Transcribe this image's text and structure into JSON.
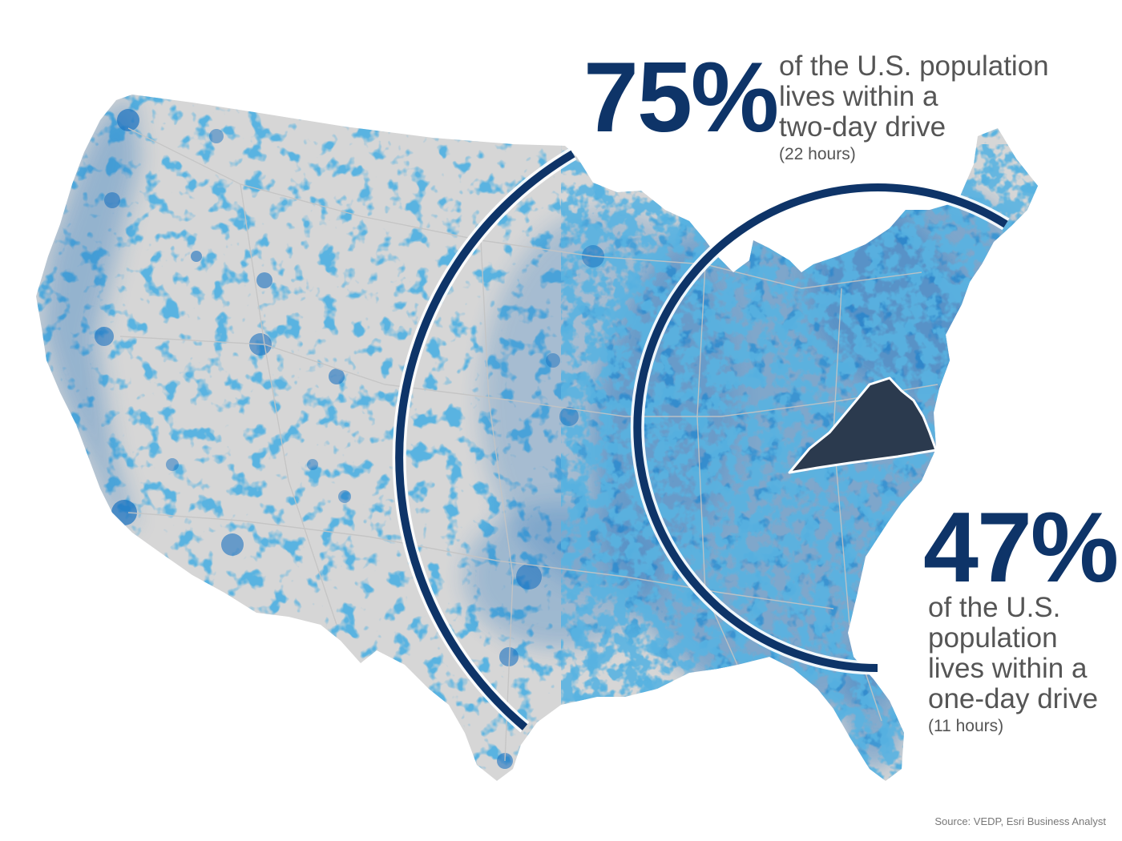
{
  "stats": {
    "two_day": {
      "value": "75%",
      "lines": [
        "of the U.S. population",
        "lives within a",
        "two-day drive"
      ],
      "note": "(22 hours)"
    },
    "one_day": {
      "value": "47%",
      "lines": [
        "of the U.S.",
        "population",
        "lives within a",
        "one-day drive"
      ],
      "note": "(11 hours)"
    }
  },
  "source": "Source: VEDP, Esri Business Analyst",
  "colors": {
    "land": "#d6d6d6",
    "population": "#1a72c0",
    "ring": "#0e3468",
    "highlight_state": "#2b3a4e",
    "text_accent": "#0e3468",
    "text_body": "#555555"
  },
  "map": {
    "subject": "Contiguous United States population density",
    "highlighted_state": "virginia-shape"
  }
}
